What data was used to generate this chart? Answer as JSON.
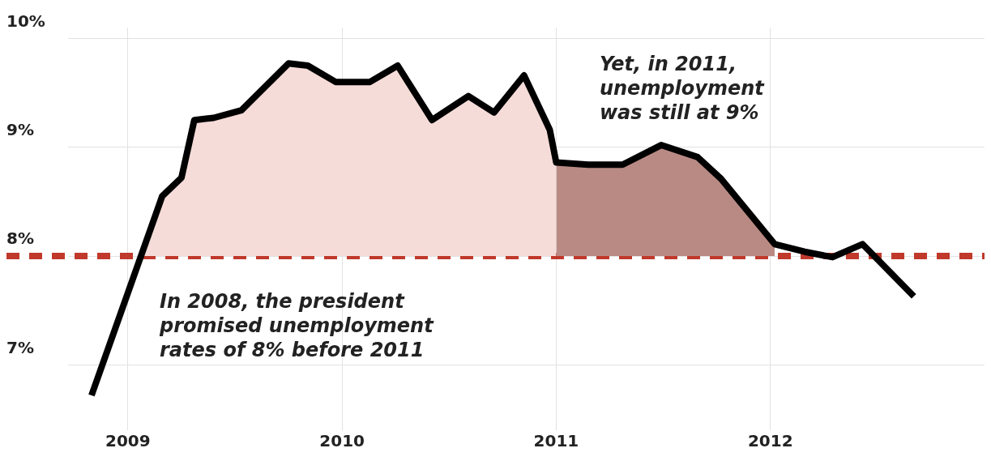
{
  "chart_data": {
    "type": "line",
    "x": [
      2008.83,
      2009.16,
      2009.25,
      2009.31,
      2009.4,
      2009.53,
      2009.75,
      2009.84,
      2009.97,
      2010.13,
      2010.26,
      2010.42,
      2010.59,
      2010.71,
      2010.85,
      2010.97,
      2011.0,
      2011.15,
      2011.31,
      2011.49,
      2011.66,
      2011.77,
      2012.02,
      2012.16,
      2012.29,
      2012.43,
      2012.67
    ],
    "series": [
      {
        "type": "area",
        "color": "#f5dcd8",
        "x": [
          2008.83,
          2009.16,
          2009.25,
          2009.31,
          2009.4,
          2009.53,
          2009.75,
          2009.84,
          2009.97,
          2010.13,
          2010.26,
          2010.42,
          2010.59,
          2010.71,
          2010.85,
          2010.97,
          2011.0
        ],
        "values": [
          6.72,
          8.55,
          8.72,
          9.25,
          9.27,
          9.34,
          9.77,
          9.75,
          9.6,
          9.6,
          9.75,
          9.25,
          9.47,
          9.32,
          9.66,
          9.16,
          8.86
        ]
      },
      {
        "type": "area",
        "color": "#b98a84",
        "x": [
          2011.0,
          2011.15,
          2011.31,
          2011.49,
          2011.66,
          2011.77,
          2012.02
        ],
        "values": [
          8.86,
          8.84,
          8.84,
          9.02,
          8.91,
          8.71,
          8.11
        ]
      },
      {
        "color": "#000000",
        "values": [
          6.72,
          8.55,
          8.72,
          9.25,
          9.27,
          9.34,
          9.77,
          9.75,
          9.6,
          9.6,
          9.75,
          9.25,
          9.47,
          9.32,
          9.66,
          9.16,
          8.86,
          8.84,
          8.84,
          9.02,
          8.91,
          8.71,
          8.11,
          8.04,
          7.99,
          8.11,
          7.63
        ]
      }
    ],
    "xlim": [
      2008.72,
      2013.0
    ],
    "xticks": [
      2009,
      2010,
      2011,
      2012
    ],
    "ylim": [
      6.4,
      10.1
    ],
    "yticks": [
      {
        "value": 7,
        "label": "7%"
      },
      {
        "value": 8,
        "label": "8%"
      },
      {
        "value": 9,
        "label": "9%"
      },
      {
        "value": 10,
        "label": "10%"
      }
    ],
    "ref_lines": [
      {
        "axis": "y",
        "value": 8,
        "color": "#c0392b",
        "line_style": "dashed"
      }
    ],
    "annotations": [
      "In 2008, the president\npromised unemployment\nrates of 8% before 2011",
      "Yet, in 2011,\nunemployment\nwas still at 9%"
    ],
    "grid": true,
    "legend": false,
    "marker": "none",
    "line_style": "solid"
  }
}
